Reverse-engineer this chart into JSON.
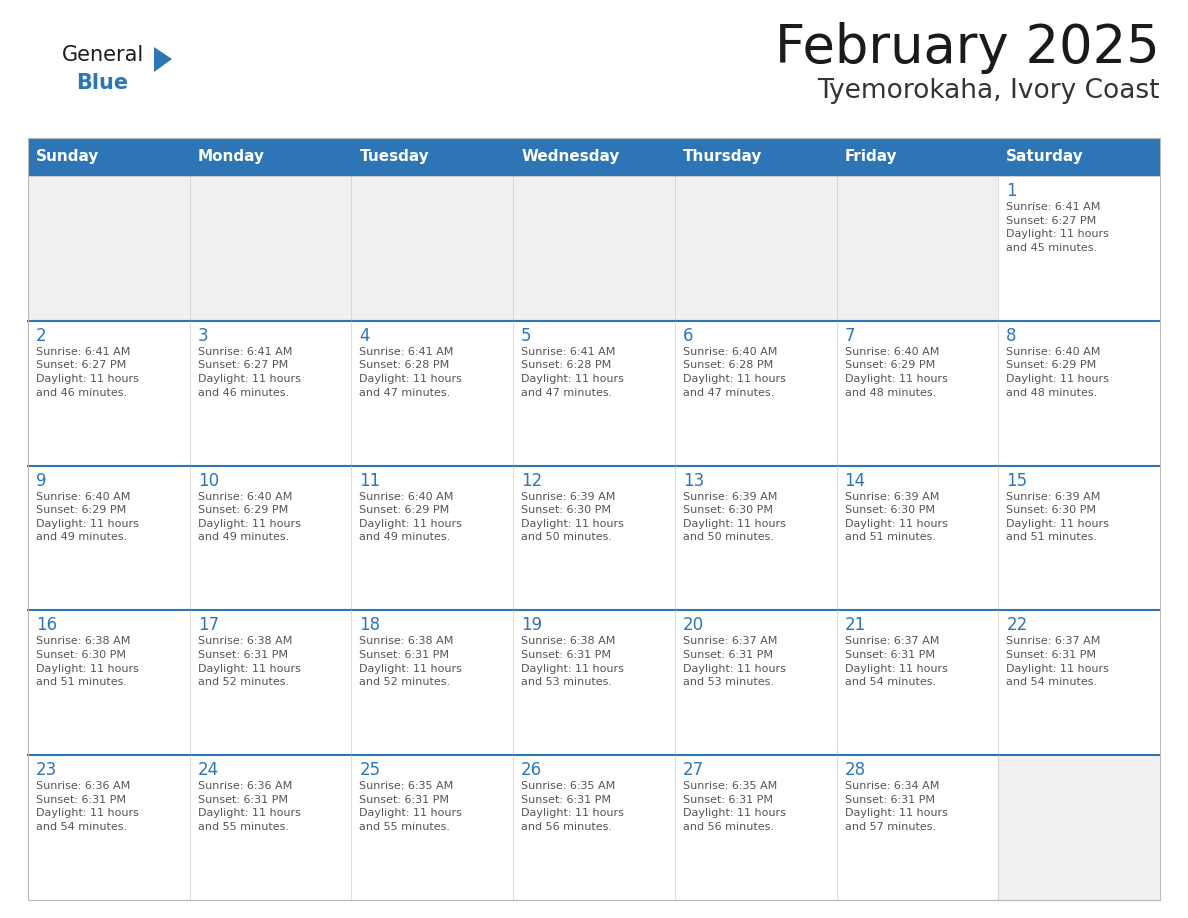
{
  "title": "February 2025",
  "subtitle": "Tyemorokaha, Ivory Coast",
  "header_bg_color": "#2E75B6",
  "header_text_color": "#FFFFFF",
  "day_names": [
    "Sunday",
    "Monday",
    "Tuesday",
    "Wednesday",
    "Thursday",
    "Friday",
    "Saturday"
  ],
  "cell_bg_color": "#FFFFFF",
  "empty_cell_bg_color": "#F0F0F0",
  "cell_border_color": "#CCCCCC",
  "row_divider_color": "#2E75B6",
  "day_num_color": "#2E75B6",
  "info_text_color": "#555555",
  "background_color": "#FFFFFF",
  "title_color": "#1a1a1a",
  "subtitle_color": "#333333",
  "calendar_data": [
    [
      null,
      null,
      null,
      null,
      null,
      null,
      {
        "day": 1,
        "sunrise": "6:41 AM",
        "sunset": "6:27 PM",
        "daylight_hours": 11,
        "daylight_minutes": 45
      }
    ],
    [
      {
        "day": 2,
        "sunrise": "6:41 AM",
        "sunset": "6:27 PM",
        "daylight_hours": 11,
        "daylight_minutes": 46
      },
      {
        "day": 3,
        "sunrise": "6:41 AM",
        "sunset": "6:27 PM",
        "daylight_hours": 11,
        "daylight_minutes": 46
      },
      {
        "day": 4,
        "sunrise": "6:41 AM",
        "sunset": "6:28 PM",
        "daylight_hours": 11,
        "daylight_minutes": 47
      },
      {
        "day": 5,
        "sunrise": "6:41 AM",
        "sunset": "6:28 PM",
        "daylight_hours": 11,
        "daylight_minutes": 47
      },
      {
        "day": 6,
        "sunrise": "6:40 AM",
        "sunset": "6:28 PM",
        "daylight_hours": 11,
        "daylight_minutes": 47
      },
      {
        "day": 7,
        "sunrise": "6:40 AM",
        "sunset": "6:29 PM",
        "daylight_hours": 11,
        "daylight_minutes": 48
      },
      {
        "day": 8,
        "sunrise": "6:40 AM",
        "sunset": "6:29 PM",
        "daylight_hours": 11,
        "daylight_minutes": 48
      }
    ],
    [
      {
        "day": 9,
        "sunrise": "6:40 AM",
        "sunset": "6:29 PM",
        "daylight_hours": 11,
        "daylight_minutes": 49
      },
      {
        "day": 10,
        "sunrise": "6:40 AM",
        "sunset": "6:29 PM",
        "daylight_hours": 11,
        "daylight_minutes": 49
      },
      {
        "day": 11,
        "sunrise": "6:40 AM",
        "sunset": "6:29 PM",
        "daylight_hours": 11,
        "daylight_minutes": 49
      },
      {
        "day": 12,
        "sunrise": "6:39 AM",
        "sunset": "6:30 PM",
        "daylight_hours": 11,
        "daylight_minutes": 50
      },
      {
        "day": 13,
        "sunrise": "6:39 AM",
        "sunset": "6:30 PM",
        "daylight_hours": 11,
        "daylight_minutes": 50
      },
      {
        "day": 14,
        "sunrise": "6:39 AM",
        "sunset": "6:30 PM",
        "daylight_hours": 11,
        "daylight_minutes": 51
      },
      {
        "day": 15,
        "sunrise": "6:39 AM",
        "sunset": "6:30 PM",
        "daylight_hours": 11,
        "daylight_minutes": 51
      }
    ],
    [
      {
        "day": 16,
        "sunrise": "6:38 AM",
        "sunset": "6:30 PM",
        "daylight_hours": 11,
        "daylight_minutes": 51
      },
      {
        "day": 17,
        "sunrise": "6:38 AM",
        "sunset": "6:31 PM",
        "daylight_hours": 11,
        "daylight_minutes": 52
      },
      {
        "day": 18,
        "sunrise": "6:38 AM",
        "sunset": "6:31 PM",
        "daylight_hours": 11,
        "daylight_minutes": 52
      },
      {
        "day": 19,
        "sunrise": "6:38 AM",
        "sunset": "6:31 PM",
        "daylight_hours": 11,
        "daylight_minutes": 53
      },
      {
        "day": 20,
        "sunrise": "6:37 AM",
        "sunset": "6:31 PM",
        "daylight_hours": 11,
        "daylight_minutes": 53
      },
      {
        "day": 21,
        "sunrise": "6:37 AM",
        "sunset": "6:31 PM",
        "daylight_hours": 11,
        "daylight_minutes": 54
      },
      {
        "day": 22,
        "sunrise": "6:37 AM",
        "sunset": "6:31 PM",
        "daylight_hours": 11,
        "daylight_minutes": 54
      }
    ],
    [
      {
        "day": 23,
        "sunrise": "6:36 AM",
        "sunset": "6:31 PM",
        "daylight_hours": 11,
        "daylight_minutes": 54
      },
      {
        "day": 24,
        "sunrise": "6:36 AM",
        "sunset": "6:31 PM",
        "daylight_hours": 11,
        "daylight_minutes": 55
      },
      {
        "day": 25,
        "sunrise": "6:35 AM",
        "sunset": "6:31 PM",
        "daylight_hours": 11,
        "daylight_minutes": 55
      },
      {
        "day": 26,
        "sunrise": "6:35 AM",
        "sunset": "6:31 PM",
        "daylight_hours": 11,
        "daylight_minutes": 56
      },
      {
        "day": 27,
        "sunrise": "6:35 AM",
        "sunset": "6:31 PM",
        "daylight_hours": 11,
        "daylight_minutes": 56
      },
      {
        "day": 28,
        "sunrise": "6:34 AM",
        "sunset": "6:31 PM",
        "daylight_hours": 11,
        "daylight_minutes": 57
      },
      null
    ]
  ],
  "logo_text_general": "General",
  "logo_text_blue": "Blue",
  "logo_triangle_color": "#2E75B6"
}
